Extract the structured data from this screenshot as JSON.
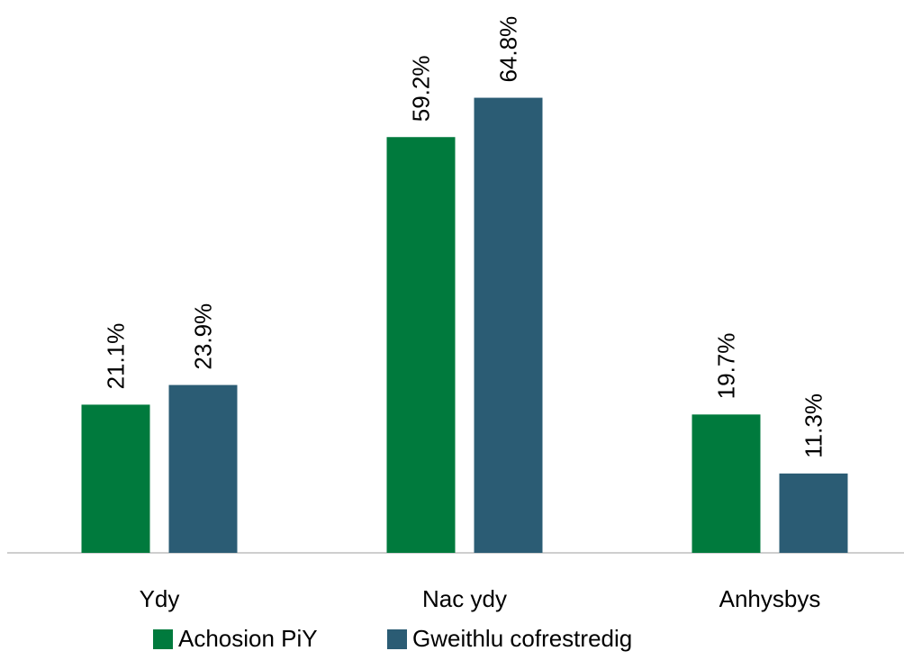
{
  "chart_data": {
    "type": "bar",
    "categories": [
      "Ydy",
      "Nac ydy",
      "Anhysbys"
    ],
    "series": [
      {
        "name": "Achosion PiY",
        "color": "#007A3D",
        "values": [
          21.1,
          59.2,
          19.7
        ],
        "labels": [
          "21.1%",
          "59.2%",
          "19.7%"
        ]
      },
      {
        "name": "Gweithlu cofrestredig",
        "color": "#2B5C74",
        "values": [
          23.9,
          64.8,
          11.3
        ],
        "labels": [
          "23.9%",
          "64.8%",
          "11.3%"
        ]
      }
    ],
    "title": "",
    "xlabel": "",
    "ylabel": "",
    "ylim": [
      0,
      100
    ],
    "grid": false,
    "legend_position": "bottom",
    "data_labels": "rotated"
  }
}
